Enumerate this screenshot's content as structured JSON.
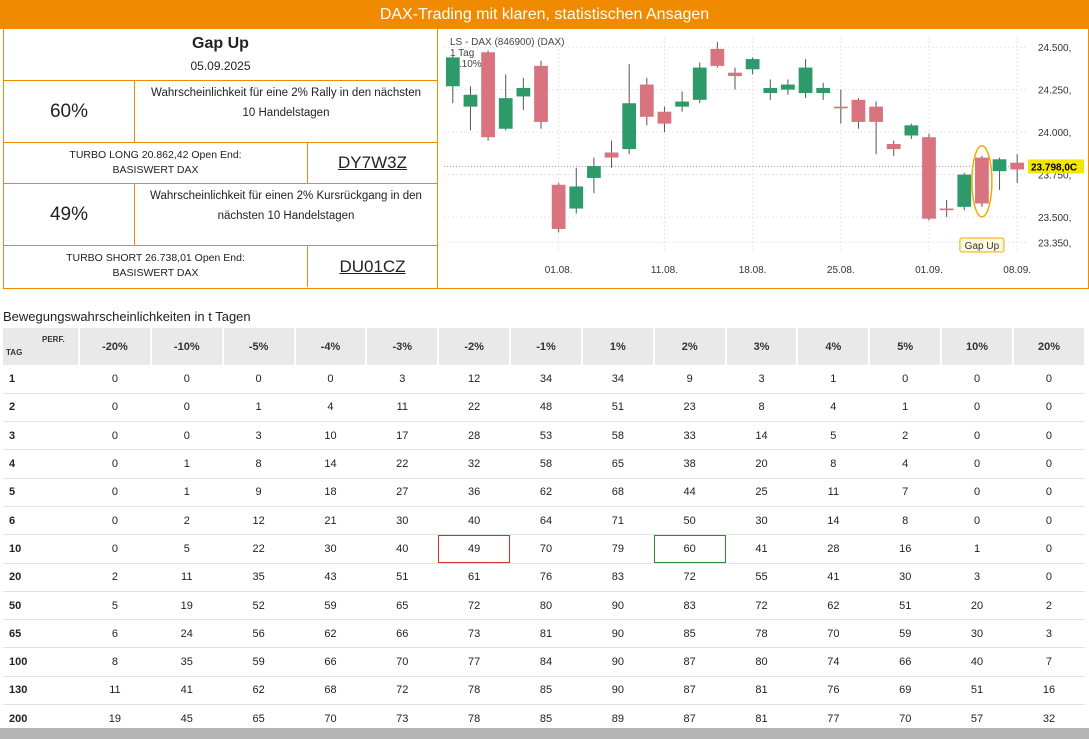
{
  "banner": {
    "title": "DAX-Trading mit klaren, statistischen Ansagen"
  },
  "signal": {
    "title": "Gap Up",
    "date": "05.09.2025"
  },
  "long": {
    "pct": "60%",
    "desc_line1": "Wahrscheinlichkeit für eine 2% Rally in den nächsten",
    "desc_line2": "10 Handelstagen",
    "product_line1": "TURBO LONG 20.862,42 Open End:",
    "product_line2": "BASISWERT DAX",
    "code": "DY7W3Z"
  },
  "short": {
    "pct": "49%",
    "desc_line1": "Wahrscheinlichkeit für einen 2% Kursrückgang in den",
    "desc_line2": "nächsten 10 Handelstagen",
    "product_line1": "TURBO SHORT 26.738,01 Open End:",
    "product_line2": "BASISWERT DAX",
    "code": "DU01CZ"
  },
  "chart_data": {
    "type": "candlestick",
    "header": "LS - DAX (846900) (DAX)",
    "period": "1 Tag",
    "change": "-0.10%",
    "y_ticks": [
      24500,
      24250,
      24000,
      23750,
      23500,
      23350
    ],
    "y_tick_labels": [
      "24.500,",
      "24.250,",
      "24.000,",
      "23.750,",
      "23.500,",
      "23.350,"
    ],
    "ylim": [
      23300,
      24560
    ],
    "x_tick_labels": [
      {
        "label": "01.08.",
        "index": 6
      },
      {
        "label": "11.08.",
        "index": 12
      },
      {
        "label": "18.08.",
        "index": 17
      },
      {
        "label": "25.08.",
        "index": 22
      },
      {
        "label": "01.09.",
        "index": 27
      },
      {
        "label": "08.09.",
        "index": 32
      }
    ],
    "last_price_label": "23.798,0C",
    "last_price": 23798,
    "annotation": {
      "label": "Gap Up",
      "index": 30
    },
    "candles": [
      {
        "o": 24270,
        "h": 24450,
        "l": 24170,
        "c": 24440
      },
      {
        "o": 24150,
        "h": 24270,
        "l": 24010,
        "c": 24220
      },
      {
        "o": 24470,
        "h": 24480,
        "l": 23950,
        "c": 23970
      },
      {
        "o": 24020,
        "h": 24340,
        "l": 24010,
        "c": 24200
      },
      {
        "o": 24210,
        "h": 24320,
        "l": 24130,
        "c": 24260
      },
      {
        "o": 24390,
        "h": 24420,
        "l": 24020,
        "c": 24060
      },
      {
        "o": 23690,
        "h": 23700,
        "l": 23410,
        "c": 23430
      },
      {
        "o": 23550,
        "h": 23790,
        "l": 23520,
        "c": 23680
      },
      {
        "o": 23730,
        "h": 23850,
        "l": 23640,
        "c": 23800
      },
      {
        "o": 23880,
        "h": 23950,
        "l": 23790,
        "c": 23850
      },
      {
        "o": 23900,
        "h": 24400,
        "l": 23870,
        "c": 24170
      },
      {
        "o": 24280,
        "h": 24320,
        "l": 24040,
        "c": 24090
      },
      {
        "o": 24120,
        "h": 24150,
        "l": 24000,
        "c": 24050
      },
      {
        "o": 24150,
        "h": 24240,
        "l": 24120,
        "c": 24180
      },
      {
        "o": 24190,
        "h": 24410,
        "l": 24170,
        "c": 24380
      },
      {
        "o": 24490,
        "h": 24530,
        "l": 24380,
        "c": 24390
      },
      {
        "o": 24350,
        "h": 24380,
        "l": 24250,
        "c": 24330
      },
      {
        "o": 24370,
        "h": 24440,
        "l": 24340,
        "c": 24430
      },
      {
        "o": 24230,
        "h": 24310,
        "l": 24190,
        "c": 24260
      },
      {
        "o": 24250,
        "h": 24310,
        "l": 24220,
        "c": 24280
      },
      {
        "o": 24230,
        "h": 24430,
        "l": 24200,
        "c": 24380
      },
      {
        "o": 24230,
        "h": 24290,
        "l": 24190,
        "c": 24260
      },
      {
        "o": 24150,
        "h": 24250,
        "l": 24050,
        "c": 24140
      },
      {
        "o": 24190,
        "h": 24200,
        "l": 24020,
        "c": 24060
      },
      {
        "o": 24150,
        "h": 24180,
        "l": 23870,
        "c": 24060
      },
      {
        "o": 23930,
        "h": 23950,
        "l": 23860,
        "c": 23900
      },
      {
        "o": 23980,
        "h": 24050,
        "l": 23960,
        "c": 24040
      },
      {
        "o": 23970,
        "h": 23990,
        "l": 23480,
        "c": 23490
      },
      {
        "o": 23550,
        "h": 23600,
        "l": 23500,
        "c": 23540
      },
      {
        "o": 23560,
        "h": 23760,
        "l": 23540,
        "c": 23750
      },
      {
        "o": 23850,
        "h": 23860,
        "l": 23560,
        "c": 23580
      },
      {
        "o": 23770,
        "h": 23850,
        "l": 23660,
        "c": 23840
      },
      {
        "o": 23820,
        "h": 23870,
        "l": 23700,
        "c": 23780
      }
    ]
  },
  "table": {
    "title": "Bewegungswahrscheinlichkeiten in t Tagen",
    "corner_perf": "PERF.",
    "corner_tag": "TAG",
    "columns": [
      "-20%",
      "-10%",
      "-5%",
      "-4%",
      "-3%",
      "-2%",
      "-1%",
      "1%",
      "2%",
      "3%",
      "4%",
      "5%",
      "10%",
      "20%"
    ],
    "rows": [
      {
        "day": "1",
        "values": [
          "0",
          "0",
          "0",
          "0",
          "3",
          "12",
          "34",
          "34",
          "9",
          "3",
          "1",
          "0",
          "0",
          "0"
        ]
      },
      {
        "day": "2",
        "values": [
          "0",
          "0",
          "1",
          "4",
          "11",
          "22",
          "48",
          "51",
          "23",
          "8",
          "4",
          "1",
          "0",
          "0"
        ]
      },
      {
        "day": "3",
        "values": [
          "0",
          "0",
          "3",
          "10",
          "17",
          "28",
          "53",
          "58",
          "33",
          "14",
          "5",
          "2",
          "0",
          "0"
        ]
      },
      {
        "day": "4",
        "values": [
          "0",
          "1",
          "8",
          "14",
          "22",
          "32",
          "58",
          "65",
          "38",
          "20",
          "8",
          "4",
          "0",
          "0"
        ]
      },
      {
        "day": "5",
        "values": [
          "0",
          "1",
          "9",
          "18",
          "27",
          "36",
          "62",
          "68",
          "44",
          "25",
          "11",
          "7",
          "0",
          "0"
        ]
      },
      {
        "day": "6",
        "values": [
          "0",
          "2",
          "12",
          "21",
          "30",
          "40",
          "64",
          "71",
          "50",
          "30",
          "14",
          "8",
          "0",
          "0"
        ]
      },
      {
        "day": "10",
        "values": [
          "0",
          "5",
          "22",
          "30",
          "40",
          "49",
          "70",
          "79",
          "60",
          "41",
          "28",
          "16",
          "1",
          "0"
        ]
      },
      {
        "day": "20",
        "values": [
          "2",
          "11",
          "35",
          "43",
          "51",
          "61",
          "76",
          "83",
          "72",
          "55",
          "41",
          "30",
          "3",
          "0"
        ]
      },
      {
        "day": "50",
        "values": [
          "5",
          "19",
          "52",
          "59",
          "65",
          "72",
          "80",
          "90",
          "83",
          "72",
          "62",
          "51",
          "20",
          "2"
        ]
      },
      {
        "day": "65",
        "values": [
          "6",
          "24",
          "56",
          "62",
          "66",
          "73",
          "81",
          "90",
          "85",
          "78",
          "70",
          "59",
          "30",
          "3"
        ]
      },
      {
        "day": "100",
        "values": [
          "8",
          "35",
          "59",
          "66",
          "70",
          "77",
          "84",
          "90",
          "87",
          "80",
          "74",
          "66",
          "40",
          "7"
        ]
      },
      {
        "day": "130",
        "values": [
          "11",
          "41",
          "62",
          "68",
          "72",
          "78",
          "85",
          "90",
          "87",
          "81",
          "76",
          "69",
          "51",
          "16"
        ]
      },
      {
        "day": "200",
        "values": [
          "19",
          "45",
          "65",
          "70",
          "73",
          "78",
          "85",
          "89",
          "87",
          "81",
          "77",
          "70",
          "57",
          "32"
        ]
      }
    ]
  },
  "colors": {
    "accent": "#f08a00",
    "up": "#2e9a6a",
    "down": "#d9737f",
    "highlight_red": "#d03030",
    "highlight_green": "#2a8a3a"
  }
}
